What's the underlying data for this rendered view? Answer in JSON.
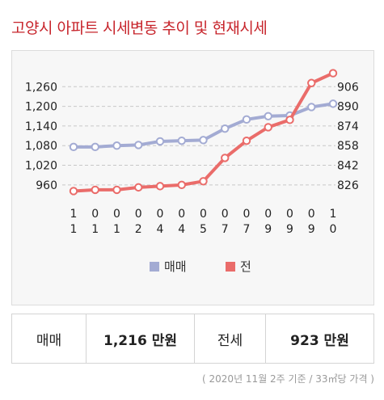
{
  "title": "고양시 아파트 시세변동 추이 및 현재시세",
  "colors": {
    "sale": "#a3abd3",
    "jeonse": "#ea6c6a",
    "title": "#c7242b"
  },
  "chart_data": {
    "type": "line",
    "x": [
      "1 1",
      "0 1",
      "0 1",
      "0 2",
      "0 4",
      "0 4",
      "0 5",
      "0 7",
      "0 7",
      "0 9",
      "0 9",
      "0 9",
      "1 0"
    ],
    "series": [
      {
        "name": "매매",
        "axis": "left",
        "values": [
          1076,
          1076,
          1080,
          1082,
          1093,
          1095,
          1097,
          1132,
          1160,
          1170,
          1172,
          1198,
          1208
        ]
      },
      {
        "name": "전",
        "axis": "right",
        "values": [
          821,
          822,
          822,
          824,
          825,
          826,
          829,
          848,
          862,
          873,
          879,
          909,
          917
        ]
      }
    ],
    "y_left": {
      "ticks": [
        "1,260",
        "1,200",
        "1,140",
        "1,080",
        "1,020",
        "960"
      ],
      "min": 930,
      "max": 1320
    },
    "y_right": {
      "ticks": [
        "906",
        "890",
        "874",
        "858",
        "842",
        "826"
      ],
      "min": 818,
      "max": 922
    },
    "grid": true,
    "legend_position": "bottom"
  },
  "summary": {
    "sale_label": "매매",
    "sale_value": "1,216 만원",
    "jeonse_label": "전세",
    "jeonse_value": "923 만원"
  },
  "footnote": "( 2020년 11월 2주 기준 / 33㎡당 가격 )"
}
